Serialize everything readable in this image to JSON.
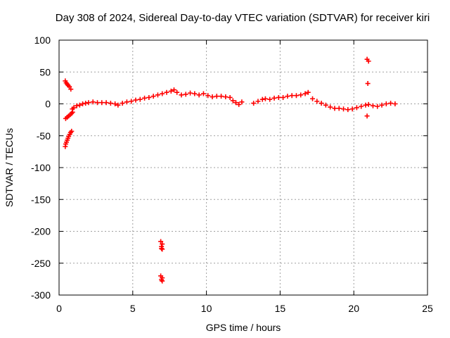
{
  "chart_data": {
    "type": "scatter",
    "title": "Day 308 of 2024, Sidereal Day-to-day VTEC variation (SDTVAR) for receiver kiri",
    "xlabel": "GPS time / hours",
    "ylabel": "SDTVAR / TECUs",
    "xlim": [
      0,
      25
    ],
    "ylim": [
      -300,
      100
    ],
    "xticks": [
      0,
      5,
      10,
      15,
      20,
      25
    ],
    "yticks": [
      -300,
      -250,
      -200,
      -150,
      -100,
      -50,
      0,
      50,
      100
    ],
    "grid": true,
    "marker": "plus",
    "color": "#ff0000",
    "series": [
      {
        "name": "SDTVAR",
        "points": [
          [
            0.42,
            36
          ],
          [
            0.48,
            33
          ],
          [
            0.55,
            31
          ],
          [
            0.62,
            29
          ],
          [
            0.7,
            27
          ],
          [
            0.8,
            23
          ],
          [
            0.42,
            -67
          ],
          [
            0.45,
            -63
          ],
          [
            0.5,
            -60
          ],
          [
            0.55,
            -57
          ],
          [
            0.6,
            -54
          ],
          [
            0.65,
            -51
          ],
          [
            0.72,
            -48
          ],
          [
            0.78,
            -45
          ],
          [
            0.85,
            -43
          ],
          [
            0.45,
            -23
          ],
          [
            0.55,
            -21
          ],
          [
            0.65,
            -19
          ],
          [
            0.75,
            -17
          ],
          [
            0.85,
            -15
          ],
          [
            0.92,
            -13
          ],
          [
            0.9,
            -8
          ],
          [
            1.0,
            -6
          ],
          [
            1.2,
            -3
          ],
          [
            1.4,
            -2
          ],
          [
            1.6,
            0
          ],
          [
            1.8,
            1
          ],
          [
            2.0,
            2
          ],
          [
            2.3,
            3
          ],
          [
            2.6,
            2
          ],
          [
            2.9,
            2
          ],
          [
            3.2,
            2
          ],
          [
            3.5,
            1
          ],
          [
            3.8,
            0
          ],
          [
            4.0,
            -2
          ],
          [
            4.3,
            1
          ],
          [
            4.6,
            3
          ],
          [
            4.9,
            4
          ],
          [
            5.2,
            6
          ],
          [
            5.5,
            7
          ],
          [
            5.8,
            9
          ],
          [
            6.1,
            10
          ],
          [
            6.4,
            12
          ],
          [
            6.7,
            14
          ],
          [
            7.0,
            16
          ],
          [
            7.3,
            18
          ],
          [
            7.6,
            20
          ],
          [
            7.8,
            22
          ],
          [
            8.0,
            18
          ],
          [
            8.3,
            14
          ],
          [
            8.6,
            15
          ],
          [
            8.9,
            17
          ],
          [
            9.2,
            16
          ],
          [
            9.5,
            14
          ],
          [
            9.8,
            16
          ],
          [
            10.1,
            13
          ],
          [
            10.4,
            11
          ],
          [
            10.7,
            12
          ],
          [
            11.0,
            12
          ],
          [
            11.3,
            11
          ],
          [
            11.6,
            10
          ],
          [
            11.8,
            5
          ],
          [
            12.0,
            2
          ],
          [
            12.2,
            -1
          ],
          [
            12.4,
            3
          ],
          [
            13.2,
            1
          ],
          [
            13.5,
            4
          ],
          [
            13.8,
            7
          ],
          [
            14.0,
            8
          ],
          [
            14.3,
            7
          ],
          [
            14.6,
            9
          ],
          [
            14.9,
            10
          ],
          [
            15.2,
            10
          ],
          [
            15.5,
            12
          ],
          [
            15.8,
            13
          ],
          [
            16.1,
            13
          ],
          [
            16.4,
            14
          ],
          [
            16.7,
            16
          ],
          [
            16.9,
            18
          ],
          [
            17.2,
            8
          ],
          [
            17.5,
            4
          ],
          [
            17.8,
            1
          ],
          [
            18.1,
            -2
          ],
          [
            18.4,
            -5
          ],
          [
            18.7,
            -7
          ],
          [
            19.0,
            -7
          ],
          [
            19.3,
            -8
          ],
          [
            19.6,
            -9
          ],
          [
            19.9,
            -8
          ],
          [
            20.2,
            -6
          ],
          [
            20.5,
            -4
          ],
          [
            20.8,
            -2
          ],
          [
            21.0,
            -1
          ],
          [
            21.3,
            -3
          ],
          [
            21.6,
            -4
          ],
          [
            21.9,
            -2
          ],
          [
            22.2,
            0
          ],
          [
            22.5,
            1
          ],
          [
            22.8,
            0
          ],
          [
            20.9,
            70
          ],
          [
            21.0,
            67
          ],
          [
            20.95,
            32
          ],
          [
            20.9,
            -19
          ],
          [
            6.9,
            -216
          ],
          [
            7.0,
            -220
          ],
          [
            6.95,
            -224
          ],
          [
            7.0,
            -228
          ],
          [
            6.95,
            -227
          ],
          [
            6.9,
            -270
          ],
          [
            7.0,
            -273
          ],
          [
            6.95,
            -276
          ],
          [
            7.0,
            -278
          ]
        ]
      }
    ]
  }
}
